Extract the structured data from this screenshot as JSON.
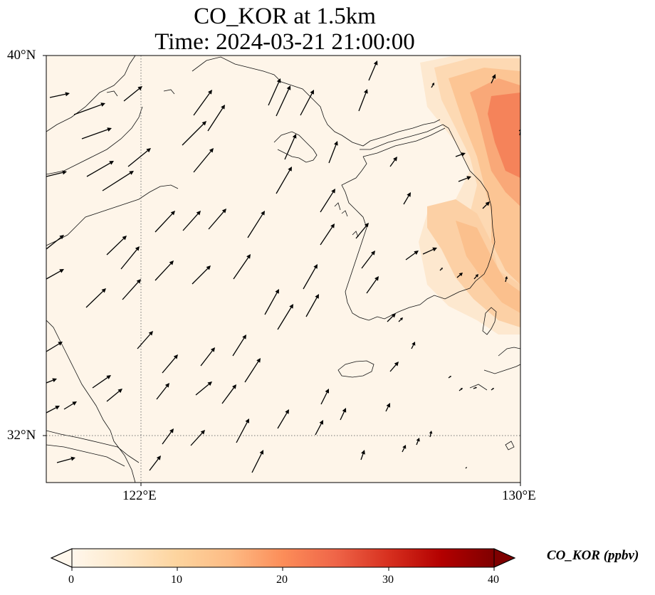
{
  "title": {
    "line1": "CO_KOR at 1.5km",
    "line2": "Time: 2024-03-21 21:00:00"
  },
  "axes": {
    "lat_ticks": [
      "40°N",
      "32°N"
    ],
    "lon_ticks": [
      "122°E",
      "130°E"
    ],
    "extent": {
      "lon_min": 120,
      "lon_max": 130,
      "lat_min": 31,
      "lat_max": 40
    },
    "gridlines": "dotted"
  },
  "colorbar": {
    "label": "CO_KOR (ppbv)",
    "ticks": [
      "0",
      "10",
      "20",
      "30",
      "40"
    ],
    "range": [
      0,
      40
    ],
    "colormap": "OrRd",
    "extend": "both",
    "stops": [
      "#fff7ec",
      "#fee8c8",
      "#fdd49e",
      "#fdbb84",
      "#fc8d59",
      "#ef6548",
      "#d7301f",
      "#b30000",
      "#7f0000"
    ]
  },
  "map_data": {
    "background_color": "#fff5e8",
    "field_description_units": "ppbv",
    "high_co_region": {
      "location": "east coast of Korean Peninsula / East Sea",
      "peak_approx": 20
    },
    "wind_vectors": "southwesterly, pointing to north-east across the domain"
  }
}
